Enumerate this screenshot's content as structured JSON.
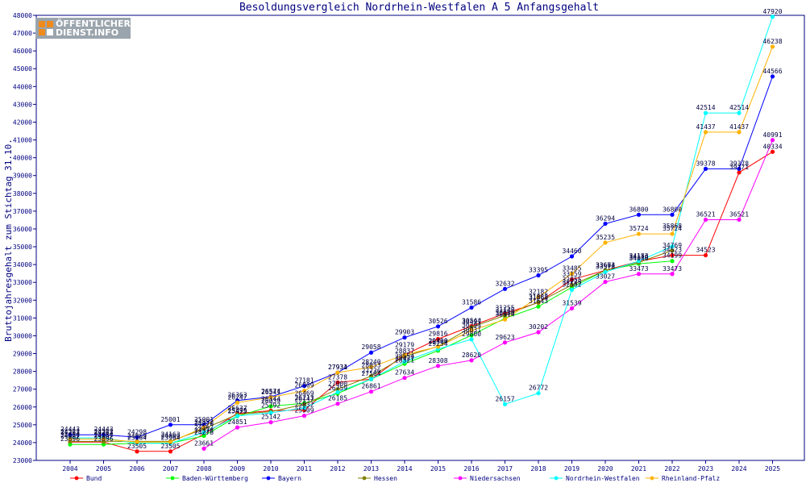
{
  "logo": {
    "line1": "ÖFFENTLICHER",
    "line2": "DIENST.INFO"
  },
  "chart_data": {
    "type": "line",
    "title": "Besoldungsvergleich Nordrhein-Westfalen A 5 Anfangsgehalt",
    "xlabel": "",
    "ylabel": "Bruttojahresgehalt zum Stichtag 31.10.",
    "ylim": [
      23000,
      48000
    ],
    "yticks": [
      23000,
      24000,
      25000,
      26000,
      27000,
      28000,
      29000,
      30000,
      31000,
      32000,
      33000,
      34000,
      35000,
      36000,
      37000,
      38000,
      39000,
      40000,
      41000,
      42000,
      43000,
      44000,
      45000,
      46000,
      47000,
      48000
    ],
    "categories": [
      "2004",
      "2005",
      "2006",
      "2007",
      "2008",
      "2009",
      "2010",
      "2011",
      "2012",
      "2013",
      "2014",
      "2015",
      "2016",
      "2017",
      "2018",
      "2019",
      "2020",
      "2021",
      "2022",
      "2023",
      "2024",
      "2025"
    ],
    "grid": false,
    "legend_position": "bottom",
    "series": [
      {
        "name": "Bund",
        "color": "#ff0000",
        "values": [
          24026,
          24026,
          23505,
          23505,
          24478,
          25638,
          25792,
          25832,
          27378,
          27562,
          28934,
          29816,
          30544,
          31255,
          31863,
          33159,
          33674,
          34183,
          34523,
          34523,
          39171,
          40334
        ]
      },
      {
        "name": "Baden-Württemberg",
        "color": "#00ff00",
        "values": [
          23896,
          23896,
          23970,
          23970,
          24378,
          25479,
          26039,
          26213,
          26759,
          27564,
          28427,
          29166,
          30031,
          30980,
          31643,
          32725,
          33674,
          34046,
          34199,
          null,
          null,
          null
        ]
      },
      {
        "name": "Bayern",
        "color": "#0000ff",
        "values": [
          24442,
          24442,
          24298,
          25001,
          25001,
          26363,
          26574,
          27181,
          27934,
          29058,
          29903,
          30526,
          31586,
          32632,
          33395,
          34460,
          36294,
          36800,
          36800,
          39378,
          39378,
          44566
        ]
      },
      {
        "name": "Hessen",
        "color": "#808000",
        "values": [
          24067,
          24067,
          24069,
          24069,
          24770,
          25586,
          25742,
          26147,
          27000,
          27736,
          28837,
          29400,
          30480,
          31148,
          31888,
          32855,
          33663,
          34119,
          34793,
          null,
          null,
          null
        ]
      },
      {
        "name": "Niedersachsen",
        "color": "#ff00ff",
        "values": [
          null,
          null,
          null,
          null,
          23661,
          24851,
          25142,
          25509,
          26185,
          26861,
          27634,
          28308,
          28620,
          29623,
          30202,
          31539,
          33027,
          33473,
          33473,
          36521,
          36521,
          40991
        ]
      },
      {
        "name": "Nordrhein-Westfalen",
        "color": "#00ffff",
        "values": [
          24263,
          24263,
          23964,
          23964,
          24562,
          25495,
          25671,
          25942,
          26837,
          27568,
          28554,
          29254,
          29800,
          26157,
          26772,
          32582,
          33578,
          34196,
          35020,
          42514,
          42514,
          47920
        ]
      },
      {
        "name": "Rheinland-Pfalz",
        "color": "#ffb300",
        "values": [
          24200,
          24200,
          24030,
          24030,
          24852,
          26247,
          26541,
          26909,
          27931,
          28240,
          28932,
          29388,
          30294,
          30914,
          32182,
          33485,
          35235,
          35724,
          35724,
          41437,
          41437,
          46238
        ]
      }
    ],
    "data_labels": [
      {
        "x": "2004",
        "texts": [
          "24443",
          "24322",
          "24263",
          "24134",
          "24067",
          "23896"
        ]
      },
      {
        "x": "2005",
        "texts": [
          "24443",
          "24322",
          "24263",
          "24134",
          "24067",
          "23896"
        ]
      },
      {
        "x": "2006",
        "texts": [
          "24298",
          "24069",
          "23964",
          "23505"
        ]
      },
      {
        "x": "2007",
        "texts": [
          "25001",
          "24163",
          "24069",
          "23964",
          "23505"
        ]
      },
      {
        "x": "2008",
        "texts": [
          "25001",
          "24852",
          "24770",
          "24562",
          "24378",
          "24278",
          "23661"
        ]
      },
      {
        "x": "2009",
        "texts": [
          "26363",
          "26247",
          "25637",
          "25495",
          "25479",
          "24851"
        ]
      },
      {
        "x": "2010",
        "texts": [
          "26574",
          "26541",
          "26144",
          "26039",
          "25792",
          "25142"
        ]
      },
      {
        "x": "2011",
        "texts": [
          "27181",
          "26909",
          "26469",
          "26213",
          "26147",
          "25832",
          "25509"
        ]
      },
      {
        "x": "2012",
        "texts": [
          "27934",
          "27931",
          "27378",
          "27000",
          "26759",
          "26185"
        ]
      },
      {
        "x": "2013",
        "texts": [
          "29058",
          "28240",
          "28053",
          "27736",
          "27564",
          "26861"
        ]
      },
      {
        "x": "2014",
        "texts": [
          "29903",
          "29179",
          "28837",
          "28554",
          "28427",
          "28321",
          "27634"
        ]
      },
      {
        "x": "2015",
        "texts": [
          "30526",
          "29816",
          "29400",
          "29388",
          "29254",
          "28308"
        ]
      },
      {
        "x": "2016",
        "texts": [
          "31586",
          "30544",
          "30497",
          "30294",
          "30031",
          "29800",
          "28620"
        ]
      },
      {
        "x": "2017",
        "texts": [
          "32632",
          "31255",
          "31148",
          "30980",
          "30914",
          "29623",
          "26157"
        ]
      },
      {
        "x": "2018",
        "texts": [
          "33395",
          "32182",
          "31888",
          "31863",
          "31643",
          "30202",
          "26772"
        ]
      },
      {
        "x": "2019",
        "texts": [
          "34460",
          "33485",
          "33159",
          "32855",
          "32725",
          "32582",
          "31539"
        ]
      },
      {
        "x": "2020",
        "texts": [
          "36294",
          "35235",
          "33674",
          "33663",
          "33578",
          "33027"
        ]
      },
      {
        "x": "2021",
        "texts": [
          "36800",
          "35724",
          "34183",
          "34119",
          "34046",
          "33473"
        ]
      },
      {
        "x": "2022",
        "texts": [
          "36800",
          "35868",
          "35724",
          "34769",
          "34523",
          "34199",
          "33473"
        ]
      },
      {
        "x": "2023",
        "texts": [
          "42514",
          "41437",
          "39378",
          "36521",
          "34523"
        ]
      },
      {
        "x": "2024",
        "texts": [
          "42514",
          "41437",
          "39378",
          "39171",
          "36521"
        ]
      },
      {
        "x": "2025",
        "texts": [
          "47920",
          "46238",
          "44566",
          "40991",
          "40334"
        ]
      }
    ]
  }
}
